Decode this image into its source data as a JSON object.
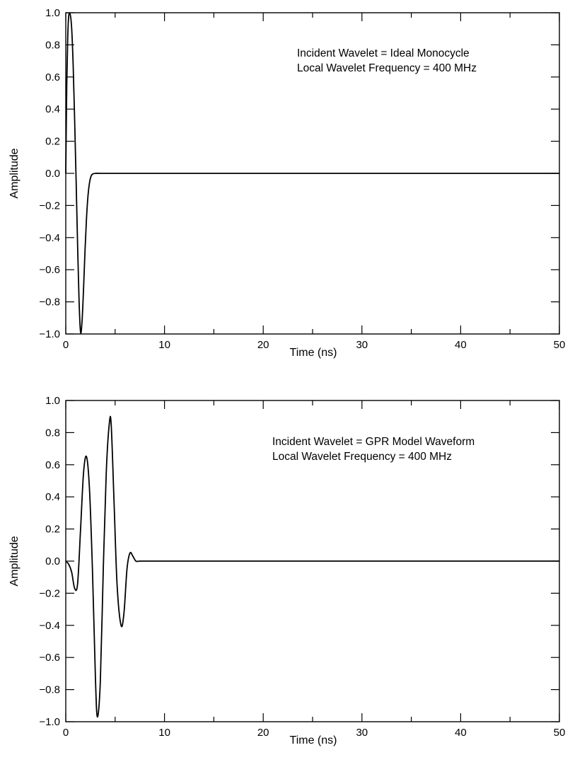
{
  "chart_data": [
    {
      "type": "line",
      "title": "",
      "xlabel": "Time (ns)",
      "ylabel": "Amplitude",
      "xlim": [
        0,
        50
      ],
      "ylim": [
        -1.0,
        1.0
      ],
      "x_ticks": [
        0,
        10,
        20,
        30,
        40,
        50
      ],
      "y_ticks": [
        1.0,
        0.8,
        0.6,
        0.4,
        0.2,
        0.0,
        -0.2,
        -0.4,
        -0.6,
        -0.8,
        -1.0
      ],
      "x_tick_labels": [
        "0",
        "10",
        "20",
        "30",
        "40",
        "50"
      ],
      "y_tick_labels": [
        "1.0",
        "0.8",
        "0.6",
        "0.4",
        "0.2",
        "0.0",
        "−0.2",
        "−0.4",
        "−0.6",
        "−0.8",
        "−1.0"
      ],
      "grid": false,
      "annotation": [
        "Incident Wavelet  = Ideal Monocycle",
        "Local Wavelet Frequency = 400 MHz"
      ],
      "series": [
        {
          "x": [
            0,
            0.1,
            0.2,
            0.3,
            0.45,
            0.6,
            0.75,
            0.9,
            1.05,
            1.2,
            1.35,
            1.5,
            1.65,
            1.8,
            1.95,
            2.1,
            2.25,
            2.4,
            2.55,
            2.7,
            3.0,
            3.5,
            5,
            10,
            20,
            30,
            40,
            50
          ],
          "y": [
            0.0,
            0.55,
            0.85,
            0.98,
            0.99,
            0.9,
            0.67,
            0.33,
            -0.05,
            -0.45,
            -0.8,
            -0.99,
            -0.92,
            -0.72,
            -0.48,
            -0.28,
            -0.14,
            -0.06,
            -0.02,
            -0.005,
            0.0,
            0.0,
            0.0,
            0.0,
            0.0,
            0.0,
            0.0,
            0.0
          ]
        }
      ]
    },
    {
      "type": "line",
      "title": "",
      "xlabel": "Time (ns)",
      "ylabel": "Amplitude",
      "xlim": [
        0,
        50
      ],
      "ylim": [
        -1.0,
        1.0
      ],
      "x_ticks": [
        0,
        10,
        20,
        30,
        40,
        50
      ],
      "y_ticks": [
        1.0,
        0.8,
        0.6,
        0.4,
        0.2,
        0.0,
        -0.2,
        -0.4,
        -0.6,
        -0.8,
        -1.0
      ],
      "x_tick_labels": [
        "0",
        "10",
        "20",
        "30",
        "40",
        "50"
      ],
      "y_tick_labels": [
        "1.0",
        "0.8",
        "0.6",
        "0.4",
        "0.2",
        "0.0",
        "−0.2",
        "−0.4",
        "−0.6",
        "−0.8",
        "−1.0"
      ],
      "grid": false,
      "annotation": [
        "Incident Wavelet  =  GPR Model Waveform",
        "Local Wavelet Frequency = 400 MHz"
      ],
      "series": [
        {
          "x": [
            0,
            0.3,
            0.6,
            0.9,
            1.2,
            1.5,
            1.8,
            2.1,
            2.4,
            2.7,
            3.0,
            3.2,
            3.5,
            3.8,
            4.1,
            4.4,
            4.6,
            4.9,
            5.2,
            5.6,
            5.9,
            6.2,
            6.5,
            6.8,
            7.1,
            7.5,
            8,
            10,
            20,
            30,
            40,
            50
          ],
          "y": [
            0.0,
            -0.02,
            -0.07,
            -0.17,
            -0.14,
            0.2,
            0.55,
            0.65,
            0.45,
            -0.05,
            -0.72,
            -0.97,
            -0.75,
            -0.05,
            0.55,
            0.85,
            0.85,
            0.35,
            -0.15,
            -0.4,
            -0.32,
            -0.05,
            0.05,
            0.03,
            0.0,
            0.0,
            0.0,
            0.0,
            0.0,
            0.0,
            0.0,
            0.0
          ]
        }
      ]
    }
  ]
}
